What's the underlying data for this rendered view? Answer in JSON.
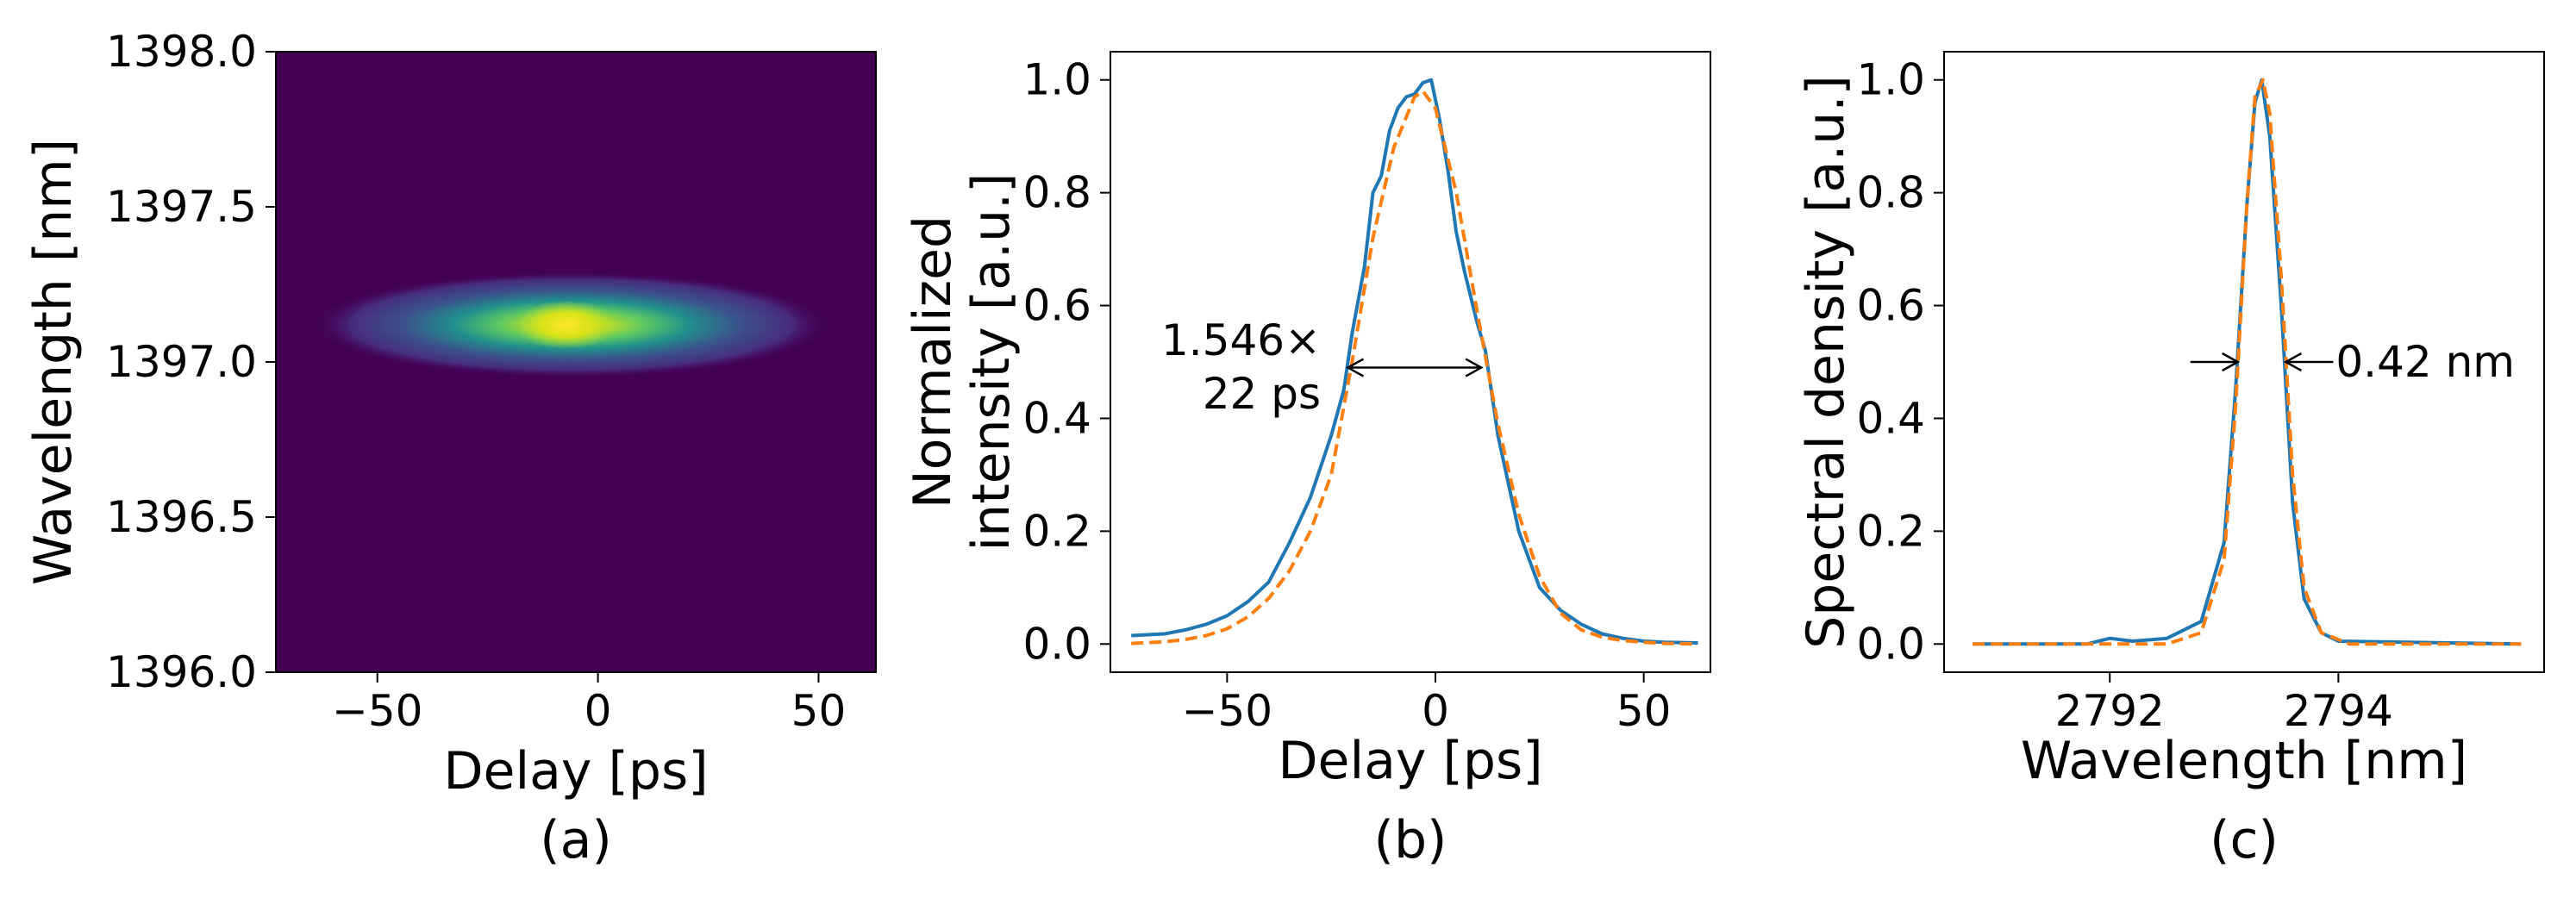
{
  "chart_data": [
    {
      "panel_label": "(a)",
      "type": "heatmap",
      "xlabel": "Delay [ps]",
      "ylabel": "Wavelength [nm]",
      "xlim": [
        -73,
        63
      ],
      "ylim": [
        1396.0,
        1398.0
      ],
      "xticks": [
        -50,
        0,
        50
      ],
      "xtick_labels": [
        "−50",
        "0",
        "50"
      ],
      "yticks": [
        1396.0,
        1396.5,
        1397.0,
        1397.5,
        1398.0
      ],
      "ytick_labels": [
        "1396.0",
        "1396.5",
        "1397.0",
        "1397.5",
        "1398.0"
      ],
      "colormap": "viridis",
      "peak_center": {
        "delay_ps": -6,
        "wavelength_nm": 1397.12
      },
      "background_color": "#440154"
    },
    {
      "panel_label": "(b)",
      "type": "line",
      "xlabel": "Delay [ps]",
      "ylabel_lines": [
        "Normalized",
        "intensity [a.u.]"
      ],
      "xlim": [
        -78,
        66
      ],
      "ylim": [
        -0.05,
        1.05
      ],
      "xticks": [
        -50,
        0,
        50
      ],
      "xtick_labels": [
        "−50",
        "0",
        "50"
      ],
      "yticks": [
        0,
        0.2,
        0.4,
        0.6,
        0.8,
        1.0
      ],
      "ytick_labels": [
        "0.0",
        "0.2",
        "0.4",
        "0.6",
        "0.8",
        "1.0"
      ],
      "series": [
        {
          "color": "#1f77b4",
          "style": "solid",
          "x": [
            -73,
            -65,
            -60,
            -55,
            -50,
            -45,
            -40,
            -35,
            -30,
            -25,
            -22,
            -20,
            -17,
            -15,
            -13,
            -11,
            -9,
            -7,
            -5,
            -3,
            -1,
            1,
            3,
            5,
            7,
            10,
            12,
            15,
            20,
            25,
            30,
            35,
            40,
            45,
            50,
            55,
            63
          ],
          "y": [
            0.015,
            0.018,
            0.025,
            0.035,
            0.05,
            0.075,
            0.11,
            0.18,
            0.26,
            0.37,
            0.45,
            0.55,
            0.67,
            0.8,
            0.83,
            0.91,
            0.95,
            0.97,
            0.975,
            0.995,
            1.0,
            0.93,
            0.84,
            0.73,
            0.66,
            0.57,
            0.52,
            0.37,
            0.2,
            0.1,
            0.06,
            0.035,
            0.018,
            0.01,
            0.005,
            0.003,
            0.002
          ]
        },
        {
          "color": "#ff7f0e",
          "style": "dashed",
          "x": [
            -73,
            -65,
            -60,
            -55,
            -50,
            -45,
            -40,
            -35,
            -30,
            -25,
            -20,
            -15,
            -10,
            -5,
            -3,
            0,
            5,
            10,
            15,
            20,
            25,
            30,
            35,
            40,
            45,
            50,
            55,
            63
          ],
          "y": [
            0.001,
            0.004,
            0.008,
            0.015,
            0.027,
            0.048,
            0.081,
            0.13,
            0.2,
            0.3,
            0.5,
            0.72,
            0.88,
            0.97,
            0.98,
            0.95,
            0.8,
            0.59,
            0.39,
            0.23,
            0.12,
            0.055,
            0.025,
            0.012,
            0.006,
            0.003,
            0.001,
            0.0
          ]
        }
      ],
      "annotation": {
        "text_lines": [
          "1.546×",
          "22 ps"
        ],
        "arrow_from_x": -21,
        "arrow_to_x": 11,
        "arrow_y": 0.49
      }
    },
    {
      "panel_label": "(c)",
      "type": "line",
      "xlabel": "Wavelength [nm]",
      "ylabel": "Spectral density [a.u.]",
      "xlim": [
        2790.55,
        2795.8
      ],
      "ylim": [
        -0.05,
        1.05
      ],
      "xticks": [
        2792,
        2794
      ],
      "xtick_labels": [
        "2792",
        "2794"
      ],
      "yticks": [
        0,
        0.2,
        0.4,
        0.6,
        0.8,
        1.0
      ],
      "ytick_labels": [
        "0.0",
        "0.2",
        "0.4",
        "0.6",
        "0.8",
        "1.0"
      ],
      "series": [
        {
          "color": "#1f77b4",
          "style": "solid",
          "x": [
            2790.8,
            2791.8,
            2792.0,
            2792.2,
            2792.5,
            2792.8,
            2793.0,
            2793.1,
            2793.2,
            2793.27,
            2793.33,
            2793.4,
            2793.5,
            2793.6,
            2793.7,
            2793.85,
            2794.0,
            2795.6
          ],
          "y": [
            0.0,
            0.0,
            0.01,
            0.005,
            0.01,
            0.04,
            0.18,
            0.45,
            0.78,
            0.96,
            1.0,
            0.9,
            0.6,
            0.25,
            0.08,
            0.02,
            0.005,
            0.0
          ]
        },
        {
          "color": "#ff7f0e",
          "style": "dashed",
          "x": [
            2790.8,
            2792.5,
            2792.8,
            2793.0,
            2793.1,
            2793.2,
            2793.27,
            2793.34,
            2793.4,
            2793.5,
            2793.6,
            2793.7,
            2793.85,
            2794.1,
            2795.6
          ],
          "y": [
            0.0,
            0.0,
            0.02,
            0.15,
            0.42,
            0.78,
            0.97,
            1.0,
            0.94,
            0.65,
            0.3,
            0.1,
            0.02,
            0.0,
            0.0
          ]
        }
      ],
      "annotation": {
        "text": "0.42 nm",
        "left_arrow_tip_x": 2793.12,
        "right_arrow_tip_x": 2793.54,
        "arrow_y": 0.5
      }
    }
  ]
}
